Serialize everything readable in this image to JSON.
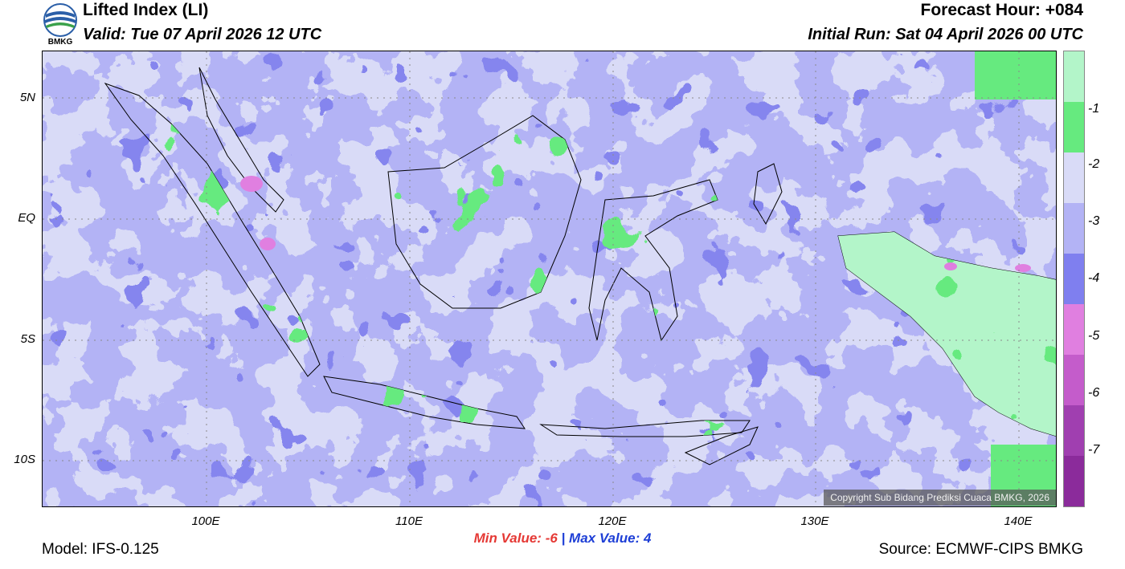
{
  "header": {
    "title": "Lifted Index (LI)",
    "valid": "Valid: Tue 07 April 2026 12 UTC",
    "forecast_hour": "Forecast Hour: +084",
    "initial_run": "Initial Run: Sat 04 April 2026 00 UTC"
  },
  "logo": {
    "text": "BMKG"
  },
  "axes": {
    "lat_labels": [
      "5N",
      "EQ",
      "5S",
      "10S"
    ],
    "lon_labels": [
      "100E",
      "110E",
      "120E",
      "130E",
      "140E"
    ]
  },
  "colorbar": {
    "labels": [
      "-1",
      "-2",
      "-3",
      "-4",
      "-5",
      "-6",
      "-7"
    ],
    "colors": [
      "#b3f5c9",
      "#66ea7f",
      "#d9dbf7",
      "#b3b3f5",
      "#7f7fef",
      "#e07fe0",
      "#c45ccb",
      "#a03fb0",
      "#8b2b9b"
    ]
  },
  "stats": {
    "min_label": "Min Value:",
    "min_value": "-6",
    "separator": "|",
    "max_label": "Max Value:",
    "max_value": "4"
  },
  "footer": {
    "model": "Model: IFS-0.125",
    "source": "Source: ECMWF-CIPS BMKG",
    "copyright": "Copyright Sub Bidang Prediksi Cuaca BMKG, 2026"
  }
}
